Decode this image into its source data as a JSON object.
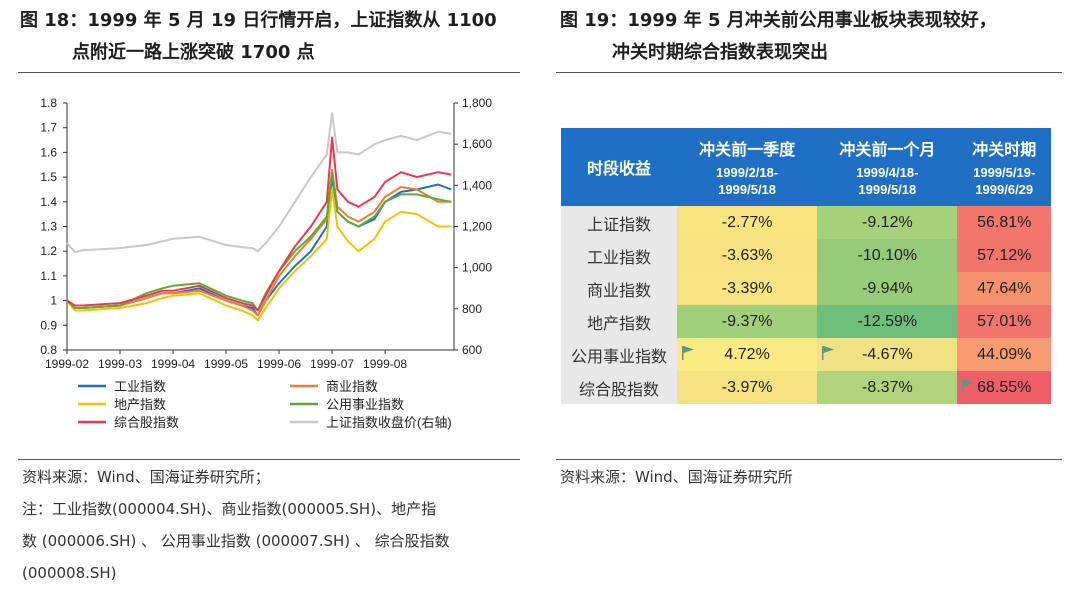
{
  "left": {
    "title_line1": "图 18：1999 年 5 月 19 日行情开启，上证指数从 1100",
    "title_line2": "点附近一路上涨突破 1700 点",
    "source": "资料来源：Wind、国海证券研究所；",
    "note_lines": [
      "注：工业指数(000004.SH)、商业指数(000005.SH)、地产指",
      "数 (000006.SH) 、 公用事业指数 (000007.SH) 、 综合股指数",
      "(000008.SH)"
    ]
  },
  "right": {
    "title_line1": "图 19：1999 年 5 月冲关前公用事业板块表现较好，",
    "title_line2": "冲关时期综合指数表现突出",
    "source": "资料来源：Wind、国海证券研究所"
  },
  "colors": {
    "header_blue": "#1f6fc5"
  },
  "chart_data": [
    {
      "type": "line",
      "title": "",
      "x_ticks": [
        "1999-02",
        "1999-03",
        "1999-04",
        "1999-05",
        "1999-06",
        "1999-07",
        "1999-08"
      ],
      "x_range_months": [
        0,
        7.3
      ],
      "ylim_left": [
        0.8,
        1.8
      ],
      "yticks_left": [
        "0.8",
        "0.9",
        "1",
        "1.1",
        "1.2",
        "1.3",
        "1.4",
        "1.5",
        "1.6",
        "1.7",
        "1.8"
      ],
      "ylim_right": [
        600,
        1800
      ],
      "yticks_right": [
        "600",
        "800",
        "1,000",
        "1,200",
        "1,400",
        "1,600",
        "1,800"
      ],
      "series": [
        {
          "name": "工业指数",
          "color": "#1f6fc5",
          "axis": "left",
          "x": [
            0,
            0.15,
            0.3,
            1.0,
            1.5,
            1.8,
            2.0,
            2.5,
            3.0,
            3.3,
            3.5,
            3.6,
            3.75,
            4.0,
            4.3,
            4.6,
            4.9,
            5.0,
            5.1,
            5.3,
            5.5,
            5.8,
            6.0,
            6.3,
            6.6,
            7.0,
            7.25
          ],
          "y": [
            1.0,
            0.97,
            0.97,
            0.98,
            1.01,
            1.03,
            1.03,
            1.05,
            1.0,
            0.98,
            0.97,
            0.94,
            1.0,
            1.07,
            1.14,
            1.2,
            1.3,
            1.5,
            1.36,
            1.32,
            1.3,
            1.33,
            1.4,
            1.44,
            1.45,
            1.47,
            1.45
          ]
        },
        {
          "name": "商业指数",
          "color": "#ed7d31",
          "axis": "left",
          "x": [
            0,
            0.15,
            0.3,
            1.0,
            1.5,
            1.8,
            2.0,
            2.5,
            3.0,
            3.3,
            3.5,
            3.6,
            3.75,
            4.0,
            4.3,
            4.6,
            4.9,
            5.0,
            5.1,
            5.3,
            5.5,
            5.8,
            6.0,
            6.3,
            6.6,
            7.0,
            7.25
          ],
          "y": [
            1.0,
            0.97,
            0.97,
            0.98,
            1.01,
            1.03,
            1.03,
            1.04,
            1.0,
            0.98,
            0.96,
            0.94,
            1.0,
            1.1,
            1.18,
            1.25,
            1.33,
            1.53,
            1.38,
            1.34,
            1.32,
            1.36,
            1.42,
            1.46,
            1.45,
            1.4,
            1.4
          ]
        },
        {
          "name": "地产指数",
          "color": "#f5c000",
          "axis": "left",
          "x": [
            0,
            0.15,
            0.3,
            1.0,
            1.5,
            1.8,
            2.0,
            2.5,
            3.0,
            3.3,
            3.5,
            3.6,
            3.75,
            4.0,
            4.3,
            4.6,
            4.9,
            5.0,
            5.1,
            5.3,
            5.5,
            5.8,
            6.0,
            6.3,
            6.6,
            7.0,
            7.25
          ],
          "y": [
            1.0,
            0.96,
            0.96,
            0.97,
            0.99,
            1.01,
            1.02,
            1.03,
            0.98,
            0.96,
            0.94,
            0.92,
            0.97,
            1.05,
            1.12,
            1.18,
            1.25,
            1.45,
            1.3,
            1.24,
            1.2,
            1.25,
            1.32,
            1.36,
            1.35,
            1.3,
            1.3
          ]
        },
        {
          "name": "公用事业指数",
          "color": "#5aab3a",
          "axis": "left",
          "x": [
            0,
            0.15,
            0.3,
            1.0,
            1.5,
            1.8,
            2.0,
            2.5,
            3.0,
            3.3,
            3.5,
            3.6,
            3.75,
            4.0,
            4.3,
            4.6,
            4.9,
            5.0,
            5.1,
            5.3,
            5.5,
            5.8,
            6.0,
            6.3,
            6.6,
            7.0,
            7.25
          ],
          "y": [
            1.0,
            0.97,
            0.97,
            0.98,
            1.03,
            1.05,
            1.06,
            1.07,
            1.02,
            1.0,
            0.99,
            0.96,
            1.03,
            1.12,
            1.2,
            1.26,
            1.34,
            1.52,
            1.36,
            1.32,
            1.3,
            1.34,
            1.4,
            1.43,
            1.43,
            1.41,
            1.4
          ]
        },
        {
          "name": "综合股指数",
          "color": "#e8384f",
          "axis": "left",
          "x": [
            0,
            0.15,
            0.3,
            1.0,
            1.5,
            1.8,
            2.0,
            2.5,
            3.0,
            3.3,
            3.5,
            3.6,
            3.75,
            4.0,
            4.3,
            4.6,
            4.9,
            5.0,
            5.1,
            5.3,
            5.5,
            5.8,
            6.0,
            6.3,
            6.6,
            7.0,
            7.25
          ],
          "y": [
            1.0,
            0.98,
            0.98,
            0.99,
            1.02,
            1.04,
            1.04,
            1.06,
            1.01,
            0.99,
            0.98,
            0.96,
            1.02,
            1.12,
            1.22,
            1.3,
            1.4,
            1.66,
            1.45,
            1.4,
            1.38,
            1.42,
            1.48,
            1.52,
            1.5,
            1.52,
            1.51
          ]
        },
        {
          "name": "上证指数收盘价(右轴)",
          "color": "#c8c8c8",
          "axis": "right",
          "x": [
            0,
            0.15,
            0.3,
            1.0,
            1.5,
            2.0,
            2.5,
            3.0,
            3.3,
            3.5,
            3.6,
            3.75,
            4.0,
            4.3,
            4.6,
            4.9,
            5.0,
            5.1,
            5.3,
            5.5,
            5.8,
            6.0,
            6.3,
            6.6,
            7.0,
            7.25
          ],
          "y": [
            1120,
            1075,
            1085,
            1095,
            1110,
            1140,
            1150,
            1110,
            1100,
            1095,
            1080,
            1120,
            1200,
            1320,
            1440,
            1550,
            1750,
            1560,
            1560,
            1550,
            1600,
            1620,
            1640,
            1620,
            1660,
            1650
          ]
        }
      ]
    },
    {
      "type": "table",
      "header_label": "时段收益",
      "columns": [
        {
          "title": "冲关前一季度",
          "range_start": "1999/2/18-",
          "range_end": "1999/5/18"
        },
        {
          "title": "冲关前一个月",
          "range_start": "1999/4/18-",
          "range_end": "1999/5/18"
        },
        {
          "title": "冲关时期",
          "range_start": "1999/5/19-",
          "range_end": "1999/6/29"
        }
      ],
      "rows": [
        {
          "label": "上证指数",
          "cells": [
            {
              "value": "-2.77%",
              "color": "#f7e47f",
              "flag": false
            },
            {
              "value": "-9.12%",
              "color": "#a6d07a",
              "flag": false
            },
            {
              "value": "56.81%",
              "color": "#f2766b",
              "flag": false
            }
          ]
        },
        {
          "label": "工业指数",
          "cells": [
            {
              "value": "-3.63%",
              "color": "#f7e281",
              "flag": false
            },
            {
              "value": "-10.10%",
              "color": "#95cb78",
              "flag": false
            },
            {
              "value": "57.12%",
              "color": "#f2756b",
              "flag": false
            }
          ]
        },
        {
          "label": "商业指数",
          "cells": [
            {
              "value": "-3.39%",
              "color": "#f7e381",
              "flag": false
            },
            {
              "value": "-9.94%",
              "color": "#98cc78",
              "flag": false
            },
            {
              "value": "47.64%",
              "color": "#f5926e",
              "flag": false
            }
          ]
        },
        {
          "label": "地产指数",
          "cells": [
            {
              "value": "-9.37%",
              "color": "#a2cf79",
              "flag": false
            },
            {
              "value": "-12.59%",
              "color": "#6ebf7a",
              "flag": false
            },
            {
              "value": "57.01%",
              "color": "#f2756b",
              "flag": false
            }
          ]
        },
        {
          "label": "公用事业指数",
          "cells": [
            {
              "value": "4.72%",
              "color": "#f9ea83",
              "flag": true
            },
            {
              "value": "-4.67%",
              "color": "#f0e282",
              "flag": true
            },
            {
              "value": "44.09%",
              "color": "#f69c70",
              "flag": false
            }
          ]
        },
        {
          "label": "综合股指数",
          "cells": [
            {
              "value": "-3.97%",
              "color": "#f4e181",
              "flag": false
            },
            {
              "value": "-8.37%",
              "color": "#b1d37b",
              "flag": false
            },
            {
              "value": "68.55%",
              "color": "#ef5f68",
              "flag": true
            }
          ]
        }
      ]
    }
  ]
}
